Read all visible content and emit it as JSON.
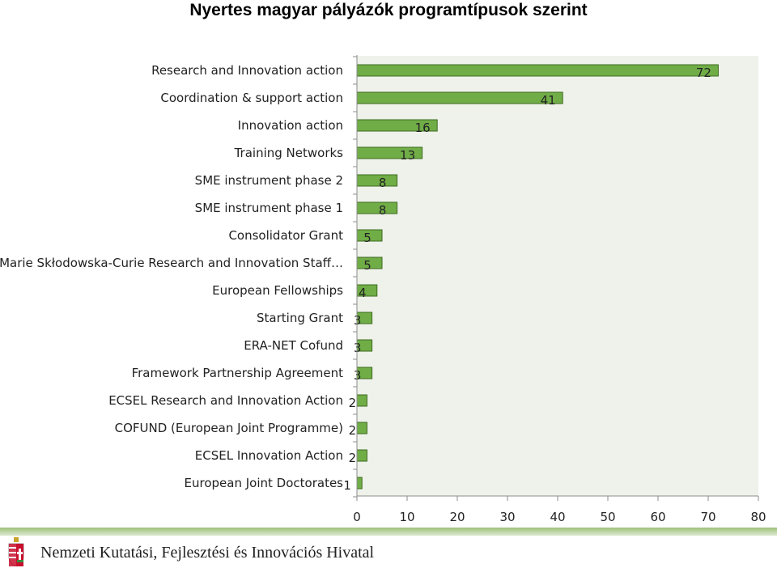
{
  "chart_data": {
    "type": "bar",
    "orientation": "horizontal",
    "title": "Nyertes magyar  pályázók programtípusok szerint",
    "categories": [
      "Research and Innovation action",
      "Coordination & support action",
      "Innovation action",
      "Training Networks",
      "SME instrument phase 2",
      "SME instrument phase 1",
      "Consolidator Grant",
      "Marie Skłodowska-Curie Research and Innovation Staff…",
      "European Fellowships",
      "Starting Grant",
      "ERA-NET Cofund",
      "Framework Partnership Agreement",
      "ECSEL Research and Innovation Action",
      "COFUND (European Joint Programme)",
      "ECSEL Innovation Action",
      "European Joint Doctorates"
    ],
    "values": [
      72,
      41,
      16,
      13,
      8,
      8,
      5,
      5,
      4,
      3,
      3,
      3,
      2,
      2,
      2,
      1
    ],
    "xlim": [
      0,
      80
    ],
    "xticks": [
      "0",
      "10",
      "20",
      "30",
      "40",
      "50",
      "60",
      "70",
      "80"
    ],
    "grid": false,
    "legend": "none",
    "colors": {
      "bar": "#70ad47",
      "bar_border": "#3d6b1f",
      "plot_bg": "#eef2ea",
      "axis": "#8c8c8c"
    }
  },
  "footer": {
    "org_name": "Nemzeti Kutatási, Fejlesztési és Innovációs Hivatal",
    "crest_icon": "hungarian-crest-icon"
  }
}
